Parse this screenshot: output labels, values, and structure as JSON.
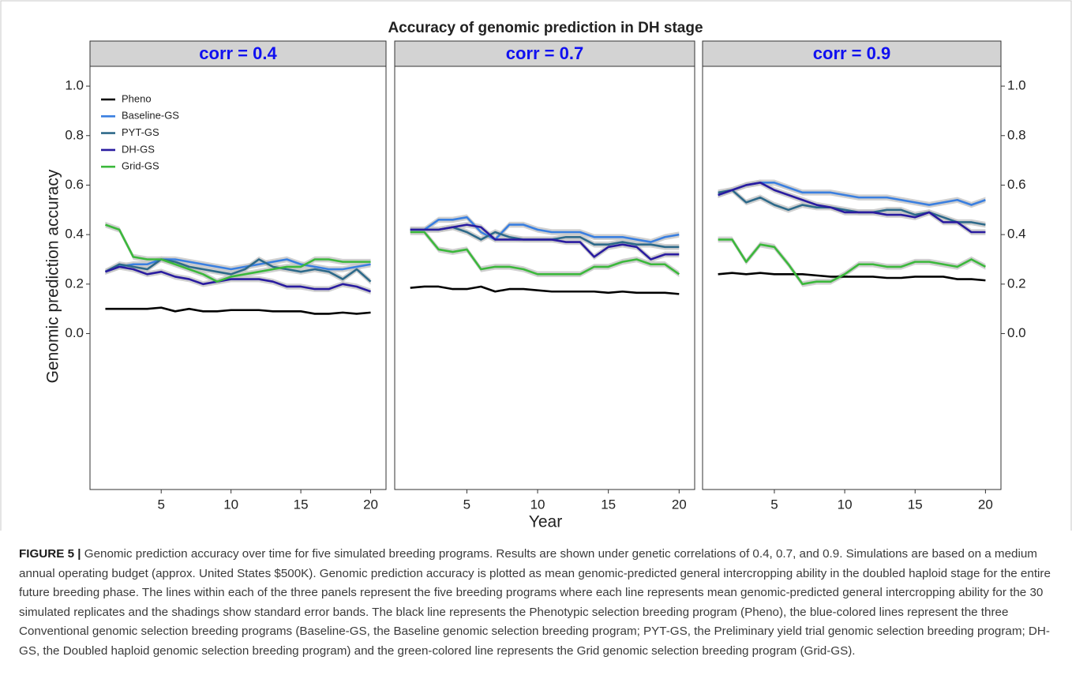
{
  "title": "Accuracy of genomic prediction in DH stage",
  "x_label": "Year",
  "y_label": "Genomic prediction accuracy",
  "chart_data": [
    {
      "type": "line",
      "title": "corr = 0.4",
      "yaxis_side": "left",
      "legend": "upper left",
      "x": [
        1,
        2,
        3,
        4,
        5,
        6,
        7,
        8,
        9,
        10,
        11,
        12,
        13,
        14,
        15,
        16,
        17,
        18,
        19,
        20
      ],
      "xlim": [
        -0.1,
        21.1
      ],
      "xticks": [
        5,
        10,
        15,
        20
      ],
      "ylim": [
        -0.63,
        1.08
      ],
      "yticks": [
        {
          "value": 0,
          "label": "0.0"
        },
        0.2,
        0.4,
        0.6,
        0.8,
        {
          "value": 1,
          "label": "1.0"
        }
      ],
      "series": [
        {
          "name": "Pheno",
          "color": "#000000",
          "values": [
            0.1,
            0.1,
            0.1,
            0.1,
            0.105,
            0.09,
            0.1,
            0.09,
            0.09,
            0.095,
            0.095,
            0.095,
            0.09,
            0.09,
            0.09,
            0.08,
            0.08,
            0.085,
            0.08,
            0.085
          ]
        },
        {
          "name": "Baseline-GS",
          "color": "#3a7fe0",
          "se": 0.012,
          "values": [
            0.25,
            0.27,
            0.28,
            0.28,
            0.3,
            0.3,
            0.29,
            0.28,
            0.27,
            0.26,
            0.27,
            0.28,
            0.29,
            0.3,
            0.28,
            0.27,
            0.26,
            0.26,
            0.27,
            0.28
          ]
        },
        {
          "name": "PYT-GS",
          "color": "#2e6a8a",
          "se": 0.012,
          "values": [
            0.25,
            0.28,
            0.27,
            0.26,
            0.3,
            0.29,
            0.27,
            0.26,
            0.25,
            0.24,
            0.26,
            0.3,
            0.27,
            0.26,
            0.25,
            0.26,
            0.25,
            0.22,
            0.26,
            0.21
          ]
        },
        {
          "name": "DH-GS",
          "color": "#2a1ca0",
          "se": 0.012,
          "values": [
            0.25,
            0.27,
            0.26,
            0.24,
            0.25,
            0.23,
            0.22,
            0.2,
            0.21,
            0.22,
            0.22,
            0.22,
            0.21,
            0.19,
            0.19,
            0.18,
            0.18,
            0.2,
            0.19,
            0.17
          ]
        },
        {
          "name": "Grid-GS",
          "color": "#3cb83c",
          "se": 0.012,
          "values": [
            0.44,
            0.42,
            0.31,
            0.3,
            0.3,
            0.28,
            0.26,
            0.24,
            0.21,
            0.23,
            0.24,
            0.25,
            0.26,
            0.27,
            0.27,
            0.3,
            0.3,
            0.29,
            0.29,
            0.29
          ]
        }
      ]
    },
    {
      "type": "line",
      "title": "corr = 0.7",
      "x": [
        1,
        2,
        3,
        4,
        5,
        6,
        7,
        8,
        9,
        10,
        11,
        12,
        13,
        14,
        15,
        16,
        17,
        18,
        19,
        20
      ],
      "xlim": [
        -0.1,
        21.1
      ],
      "xticks": [
        5,
        10,
        15,
        20
      ],
      "ylim": [
        -0.63,
        1.08
      ],
      "yticks": [
        {
          "value": 0,
          "label": "0.0"
        },
        0.2,
        0.4,
        0.6,
        0.8,
        {
          "value": 1,
          "label": "1.0"
        }
      ],
      "series": [
        {
          "name": "Pheno",
          "color": "#000000",
          "values": [
            0.185,
            0.19,
            0.19,
            0.18,
            0.18,
            0.19,
            0.17,
            0.18,
            0.18,
            0.175,
            0.17,
            0.17,
            0.17,
            0.17,
            0.165,
            0.17,
            0.165,
            0.165,
            0.165,
            0.16
          ]
        },
        {
          "name": "Baseline-GS",
          "color": "#3a7fe0",
          "se": 0.012,
          "values": [
            0.42,
            0.42,
            0.46,
            0.46,
            0.47,
            0.41,
            0.38,
            0.44,
            0.44,
            0.42,
            0.41,
            0.41,
            0.41,
            0.39,
            0.39,
            0.39,
            0.38,
            0.37,
            0.39,
            0.4
          ]
        },
        {
          "name": "PYT-GS",
          "color": "#2e6a8a",
          "se": 0.012,
          "values": [
            0.42,
            0.42,
            0.42,
            0.43,
            0.41,
            0.38,
            0.41,
            0.39,
            0.38,
            0.38,
            0.38,
            0.39,
            0.39,
            0.36,
            0.36,
            0.37,
            0.36,
            0.36,
            0.35,
            0.35
          ]
        },
        {
          "name": "DH-GS",
          "color": "#2a1ca0",
          "se": 0.012,
          "values": [
            0.42,
            0.42,
            0.42,
            0.43,
            0.44,
            0.43,
            0.38,
            0.38,
            0.38,
            0.38,
            0.38,
            0.37,
            0.37,
            0.31,
            0.35,
            0.36,
            0.35,
            0.3,
            0.32,
            0.32
          ]
        },
        {
          "name": "Grid-GS",
          "color": "#3cb83c",
          "se": 0.012,
          "values": [
            0.41,
            0.41,
            0.34,
            0.33,
            0.34,
            0.26,
            0.27,
            0.27,
            0.26,
            0.24,
            0.24,
            0.24,
            0.24,
            0.27,
            0.27,
            0.29,
            0.3,
            0.28,
            0.28,
            0.24
          ]
        }
      ]
    },
    {
      "type": "line",
      "title": "corr = 0.9",
      "yaxis_side": "right",
      "x": [
        1,
        2,
        3,
        4,
        5,
        6,
        7,
        8,
        9,
        10,
        11,
        12,
        13,
        14,
        15,
        16,
        17,
        18,
        19,
        20
      ],
      "xlim": [
        -0.1,
        21.1
      ],
      "xticks": [
        5,
        10,
        15,
        20
      ],
      "ylim": [
        -0.63,
        1.08
      ],
      "yticks": [
        {
          "value": 0,
          "label": "0.0"
        },
        0.2,
        0.4,
        0.6,
        0.8,
        {
          "value": 1,
          "label": "1.0"
        }
      ],
      "series": [
        {
          "name": "Pheno",
          "color": "#000000",
          "values": [
            0.24,
            0.245,
            0.24,
            0.245,
            0.24,
            0.24,
            0.24,
            0.235,
            0.23,
            0.23,
            0.23,
            0.23,
            0.225,
            0.225,
            0.23,
            0.23,
            0.23,
            0.22,
            0.22,
            0.215
          ]
        },
        {
          "name": "Baseline-GS",
          "color": "#3a7fe0",
          "se": 0.012,
          "values": [
            0.56,
            0.58,
            0.6,
            0.61,
            0.61,
            0.59,
            0.57,
            0.57,
            0.57,
            0.56,
            0.55,
            0.55,
            0.55,
            0.54,
            0.53,
            0.52,
            0.53,
            0.54,
            0.52,
            0.54
          ]
        },
        {
          "name": "PYT-GS",
          "color": "#2e6a8a",
          "se": 0.012,
          "values": [
            0.57,
            0.58,
            0.53,
            0.55,
            0.52,
            0.5,
            0.52,
            0.51,
            0.51,
            0.5,
            0.49,
            0.49,
            0.5,
            0.5,
            0.48,
            0.49,
            0.47,
            0.45,
            0.45,
            0.44
          ]
        },
        {
          "name": "DH-GS",
          "color": "#2a1ca0",
          "se": 0.012,
          "values": [
            0.56,
            0.58,
            0.6,
            0.61,
            0.58,
            0.56,
            0.54,
            0.52,
            0.51,
            0.49,
            0.49,
            0.49,
            0.48,
            0.48,
            0.47,
            0.49,
            0.45,
            0.45,
            0.41,
            0.41
          ]
        },
        {
          "name": "Grid-GS",
          "color": "#3cb83c",
          "se": 0.012,
          "values": [
            0.38,
            0.38,
            0.29,
            0.36,
            0.35,
            0.28,
            0.2,
            0.21,
            0.21,
            0.24,
            0.28,
            0.28,
            0.27,
            0.27,
            0.29,
            0.29,
            0.28,
            0.27,
            0.3,
            0.27
          ]
        }
      ]
    }
  ],
  "caption": {
    "label": "FIGURE 5 |",
    "text": "Genomic prediction accuracy over time for five simulated breeding programs. Results are shown under genetic correlations of 0.4, 0.7, and 0.9. Simulations are based on a medium annual operating budget (approx. United States $500K). Genomic prediction accuracy is plotted as mean genomic-predicted general intercropping ability in the doubled haploid stage for the entire future breeding phase. The lines within each of the three panels represent the five breeding programs where each line represents mean genomic-predicted general intercropping ability for the 30 simulated replicates and the shadings show standard error bands. The black line represents the Phenotypic selection breeding program (Pheno), the blue-colored lines represent the three Conventional genomic selection breeding programs (Baseline-GS, the Baseline genomic selection breeding program; PYT-GS, the Preliminary yield trial genomic selection breeding program; DH-GS, the Doubled haploid genomic selection breeding program) and the green-colored line represents the Grid genomic selection breeding program (Grid-GS)."
  }
}
